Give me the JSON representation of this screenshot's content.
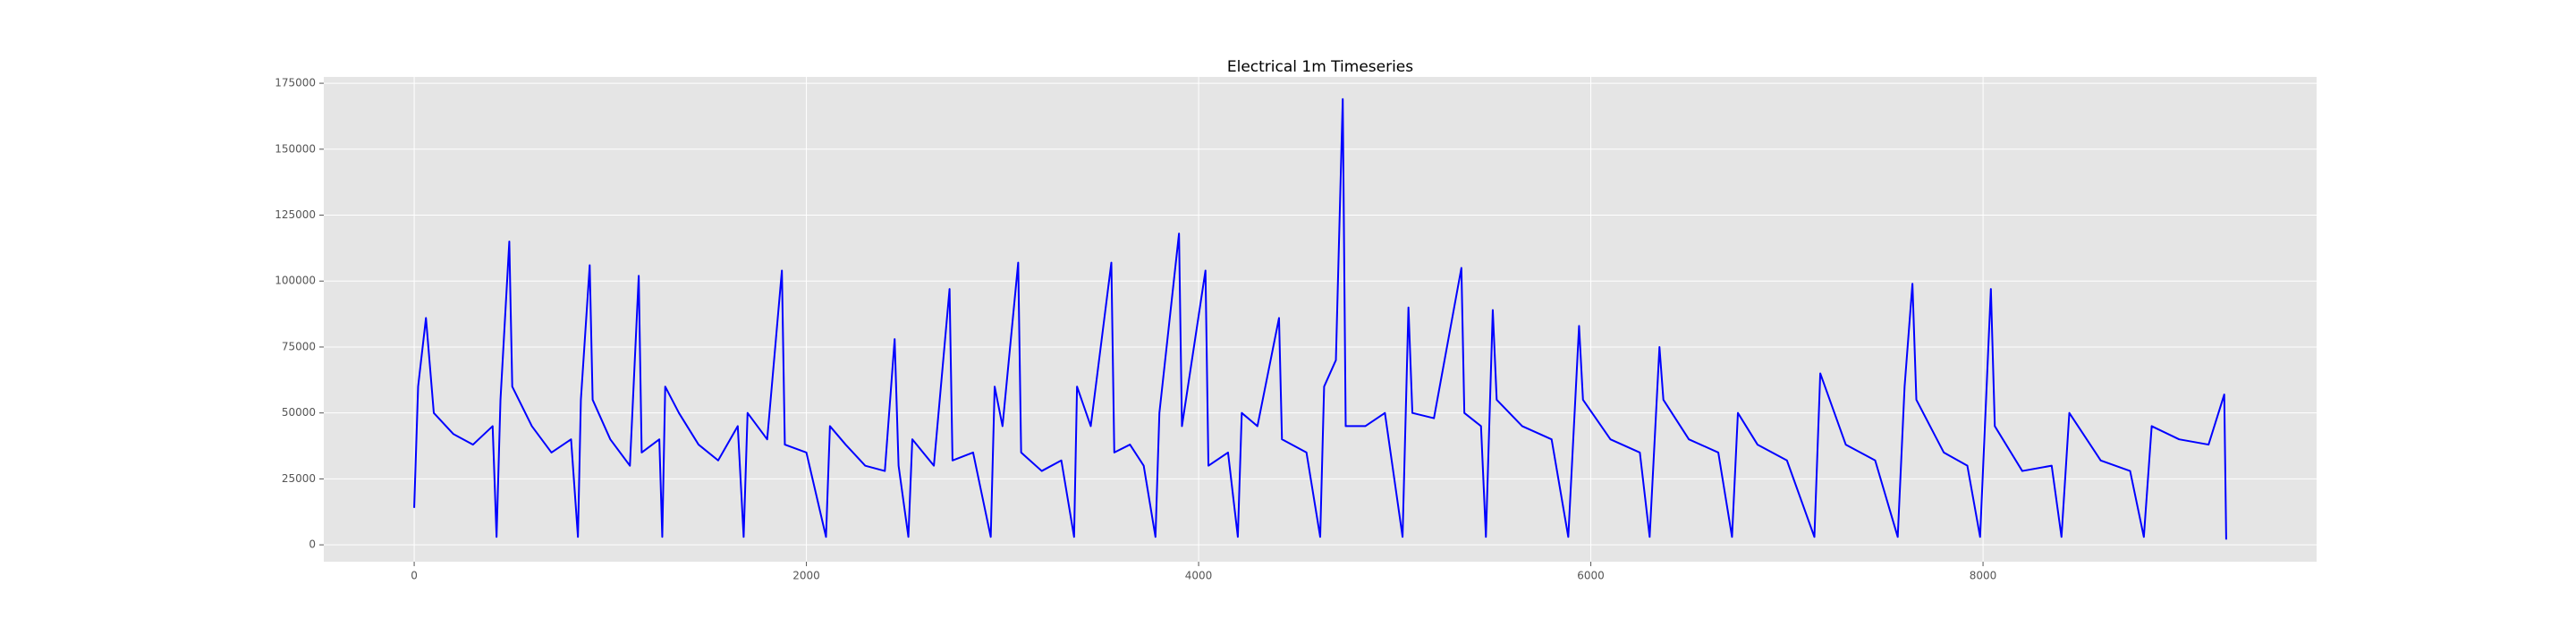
{
  "chart_data": {
    "type": "line",
    "title": "Electrical 1m Timeseries",
    "x": [
      0,
      20,
      60,
      100,
      200,
      300,
      400,
      420,
      440,
      485,
      500,
      600,
      700,
      800,
      835,
      850,
      895,
      910,
      1000,
      1100,
      1145,
      1160,
      1250,
      1265,
      1280,
      1350,
      1450,
      1550,
      1650,
      1680,
      1700,
      1800,
      1875,
      1890,
      2000,
      2100,
      2120,
      2200,
      2300,
      2400,
      2450,
      2470,
      2520,
      2540,
      2650,
      2730,
      2745,
      2850,
      2940,
      2960,
      3000,
      3080,
      3095,
      3200,
      3300,
      3365,
      3380,
      3450,
      3555,
      3570,
      3650,
      3720,
      3780,
      3800,
      3900,
      3915,
      4035,
      4050,
      4150,
      4200,
      4220,
      4300,
      4410,
      4425,
      4550,
      4620,
      4640,
      4700,
      4735,
      4750,
      4850,
      4950,
      5040,
      5070,
      5090,
      5200,
      5340,
      5355,
      5440,
      5465,
      5500,
      5520,
      5650,
      5800,
      5885,
      5940,
      5960,
      6100,
      6250,
      6300,
      6350,
      6370,
      6500,
      6650,
      6720,
      6750,
      6850,
      7000,
      7140,
      7170,
      7300,
      7450,
      7565,
      7600,
      7640,
      7660,
      7800,
      7920,
      7985,
      8040,
      8060,
      8200,
      8350,
      8400,
      8440,
      8600,
      8750,
      8820,
      8860,
      9000,
      9150,
      9230,
      9240
    ],
    "series": [
      {
        "color": "#0000ff",
        "values": [
          14000,
          60000,
          86000,
          50000,
          42000,
          38000,
          45000,
          3000,
          55000,
          115000,
          60000,
          45000,
          35000,
          40000,
          3000,
          55000,
          106000,
          55000,
          40000,
          30000,
          102000,
          35000,
          40000,
          3000,
          60000,
          50000,
          38000,
          32000,
          45000,
          3000,
          50000,
          40000,
          104000,
          38000,
          35000,
          3000,
          45000,
          38000,
          30000,
          28000,
          78000,
          30000,
          3000,
          40000,
          30000,
          97000,
          32000,
          35000,
          3000,
          60000,
          45000,
          107000,
          35000,
          28000,
          32000,
          3000,
          60000,
          45000,
          107000,
          35000,
          38000,
          30000,
          3000,
          50000,
          118000,
          45000,
          104000,
          30000,
          35000,
          3000,
          50000,
          45000,
          86000,
          40000,
          35000,
          3000,
          60000,
          70000,
          169000,
          45000,
          45000,
          50000,
          3000,
          90000,
          50000,
          48000,
          105000,
          50000,
          45000,
          3000,
          89000,
          55000,
          45000,
          40000,
          3000,
          83000,
          55000,
          40000,
          35000,
          3000,
          75000,
          55000,
          40000,
          35000,
          3000,
          50000,
          38000,
          32000,
          3000,
          65000,
          38000,
          32000,
          3000,
          60000,
          99000,
          55000,
          35000,
          30000,
          3000,
          97000,
          45000,
          28000,
          30000,
          3000,
          50000,
          32000,
          28000,
          3000,
          45000,
          40000,
          38000,
          57000,
          2000
        ]
      }
    ],
    "xlim": [
      -461,
      9701
    ],
    "ylim": [
      -6400,
      177400
    ],
    "xticks": [
      0,
      2000,
      4000,
      6000,
      8000
    ],
    "yticks": [
      0,
      25000,
      50000,
      75000,
      100000,
      125000,
      150000,
      175000
    ],
    "grid": true
  }
}
